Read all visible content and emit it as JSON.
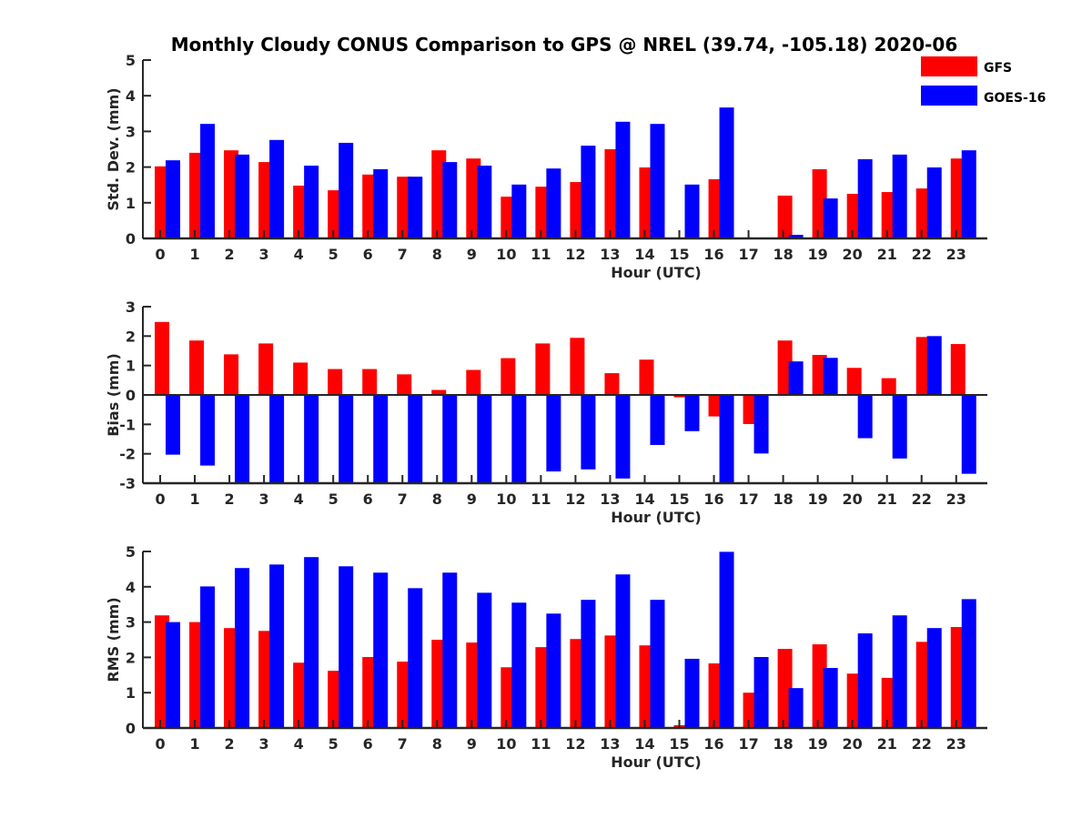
{
  "title": "Monthly Cloudy CONUS Comparison to GPS @ NREL (39.74, -105.18) 2020-06",
  "legend": {
    "placement": "top-right",
    "entries": [
      {
        "name": "GFS",
        "color": "#ff0000"
      },
      {
        "name": "GOES-16",
        "color": "#0000ff"
      }
    ]
  },
  "chart_data": [
    {
      "type": "bar",
      "title": "Monthly Cloudy CONUS Comparison to GPS @ NREL (39.74, -105.18) 2020-06",
      "xlabel": "Hour (UTC)",
      "ylabel": "Std. Dev. (mm)",
      "ylim": [
        0,
        5
      ],
      "yticks": [
        "0",
        "1",
        "2",
        "3",
        "4",
        "5"
      ],
      "categories": [
        "0",
        "1",
        "2",
        "3",
        "4",
        "5",
        "6",
        "7",
        "8",
        "9",
        "10",
        "11",
        "12",
        "13",
        "14",
        "15",
        "16",
        "17",
        "18",
        "19",
        "20",
        "21",
        "22",
        "23"
      ],
      "grid": false,
      "series": [
        {
          "name": "GFS",
          "color": "#ff0000",
          "values": [
            2.02,
            2.4,
            2.47,
            2.14,
            1.48,
            1.35,
            1.79,
            1.73,
            2.47,
            2.24,
            1.17,
            1.45,
            1.58,
            2.5,
            1.99,
            0,
            1.66,
            0,
            1.2,
            1.94,
            1.25,
            1.3,
            1.4,
            2.24
          ]
        },
        {
          "name": "GOES-16",
          "color": "#0000ff",
          "values": [
            2.19,
            3.21,
            2.35,
            2.76,
            2.04,
            2.68,
            1.94,
            1.73,
            2.14,
            2.04,
            1.51,
            1.96,
            2.6,
            3.27,
            3.21,
            1.51,
            3.67,
            0,
            0.1,
            1.12,
            2.22,
            2.35,
            1.99,
            2.47
          ]
        }
      ]
    },
    {
      "type": "bar",
      "xlabel": "Hour (UTC)",
      "ylabel": "Bias (mm)",
      "ylim": [
        -3,
        3
      ],
      "yticks": [
        "-3",
        "-2",
        "-1",
        "0",
        "1",
        "2",
        "3"
      ],
      "categories": [
        "0",
        "1",
        "2",
        "3",
        "4",
        "5",
        "6",
        "7",
        "8",
        "9",
        "10",
        "11",
        "12",
        "13",
        "14",
        "15",
        "16",
        "17",
        "18",
        "19",
        "20",
        "21",
        "22",
        "23"
      ],
      "grid": false,
      "series": [
        {
          "name": "GFS",
          "color": "#ff0000",
          "values": [
            2.48,
            1.85,
            1.38,
            1.75,
            1.1,
            0.88,
            0.88,
            0.7,
            0.17,
            0.85,
            1.25,
            1.75,
            1.94,
            0.74,
            1.2,
            -0.08,
            -0.73,
            -0.99,
            1.85,
            1.36,
            0.92,
            0.57,
            1.97,
            1.73
          ]
        },
        {
          "name": "GOES-16",
          "color": "#0000ff",
          "values": [
            -2.03,
            -2.4,
            -3.0,
            -3.0,
            -3.0,
            -3.0,
            -3.0,
            -3.0,
            -3.0,
            -3.0,
            -3.0,
            -2.6,
            -2.53,
            -2.84,
            -1.7,
            -1.23,
            -3.0,
            -1.99,
            1.14,
            1.26,
            -1.47,
            -2.16,
            2.0,
            -2.68
          ]
        }
      ]
    },
    {
      "type": "bar",
      "xlabel": "Hour (UTC)",
      "ylabel": "RMS (mm)",
      "ylim": [
        0,
        5
      ],
      "yticks": [
        "0",
        "1",
        "2",
        "3",
        "4",
        "5"
      ],
      "categories": [
        "0",
        "1",
        "2",
        "3",
        "4",
        "5",
        "6",
        "7",
        "8",
        "9",
        "10",
        "11",
        "12",
        "13",
        "14",
        "15",
        "16",
        "17",
        "18",
        "19",
        "20",
        "21",
        "22",
        "23"
      ],
      "grid": false,
      "series": [
        {
          "name": "GFS",
          "color": "#ff0000",
          "values": [
            3.19,
            3.0,
            2.83,
            2.75,
            1.85,
            1.62,
            2.01,
            1.88,
            2.5,
            2.42,
            1.72,
            2.29,
            2.52,
            2.62,
            2.34,
            0.08,
            1.83,
            1.0,
            2.24,
            2.37,
            1.54,
            1.42,
            2.44,
            2.86
          ]
        },
        {
          "name": "GOES-16",
          "color": "#0000ff",
          "values": [
            3.0,
            4.01,
            4.53,
            4.63,
            4.84,
            4.58,
            4.4,
            3.96,
            4.4,
            3.83,
            3.55,
            3.24,
            3.63,
            4.35,
            3.63,
            1.96,
            4.99,
            2.01,
            1.13,
            1.7,
            2.68,
            3.19,
            2.83,
            3.65
          ]
        }
      ]
    }
  ]
}
